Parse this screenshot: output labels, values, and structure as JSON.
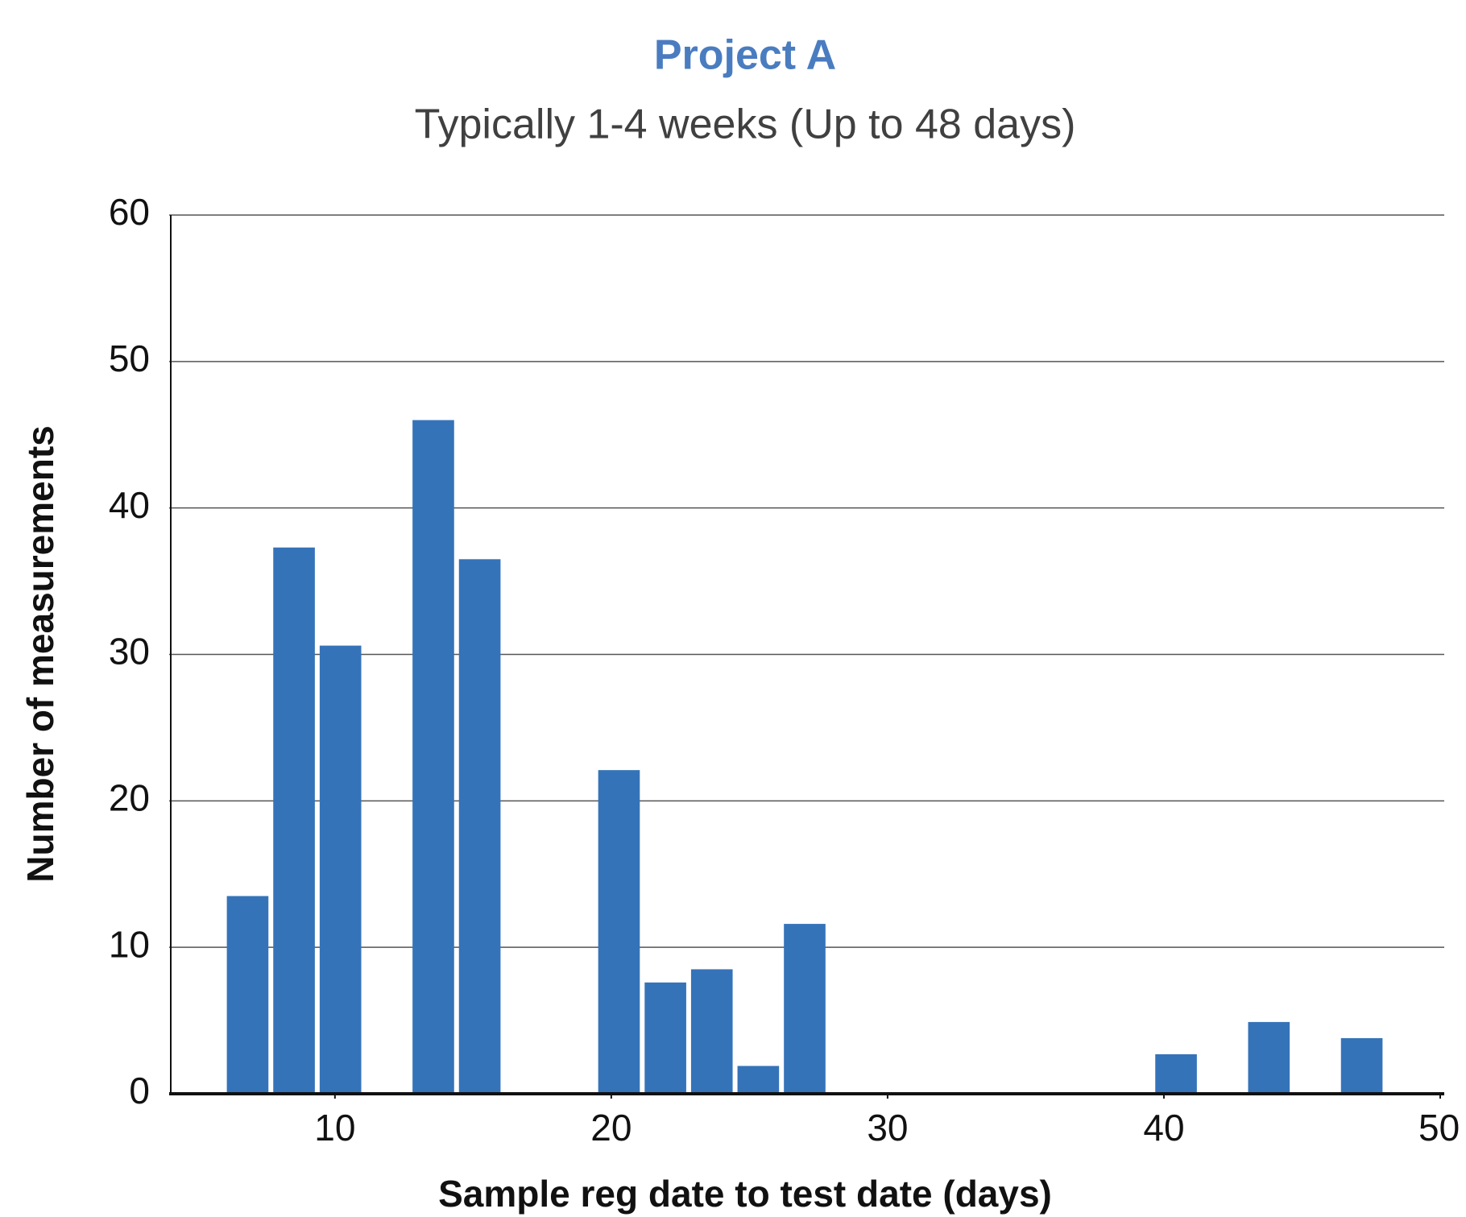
{
  "chart_data": {
    "type": "histogram",
    "title": "Project A",
    "subtitle": "Typically 1-4 weeks (Up to 48 days)",
    "x_label": "Sample reg date to test date (days)",
    "y_label": "Number of measurements",
    "bins": [
      6,
      7.68,
      9.36,
      11.04,
      12.72,
      14.4,
      16.08,
      17.76,
      19.44,
      21.12,
      22.8,
      24.48,
      26.16,
      27.84,
      29.52,
      31.2,
      32.88,
      34.56,
      36.24,
      37.92,
      39.6,
      41.28,
      42.96,
      44.64,
      46.32,
      48
    ],
    "values": [
      13.5,
      37.3,
      30.6,
      0,
      46,
      36.5,
      0,
      0,
      22.1,
      7.6,
      8.5,
      1.9,
      11.6,
      0,
      0,
      0,
      0,
      0,
      0,
      0,
      2.7,
      0,
      4.9,
      0,
      3.8
    ],
    "color": "#3573b9",
    "xlim": [
      4,
      50
    ],
    "ylim": [
      0,
      60
    ],
    "xticks": [
      10,
      20,
      30,
      40,
      50
    ],
    "yticks": [
      0,
      10,
      20,
      30,
      40,
      50,
      60
    ],
    "grid": true
  }
}
